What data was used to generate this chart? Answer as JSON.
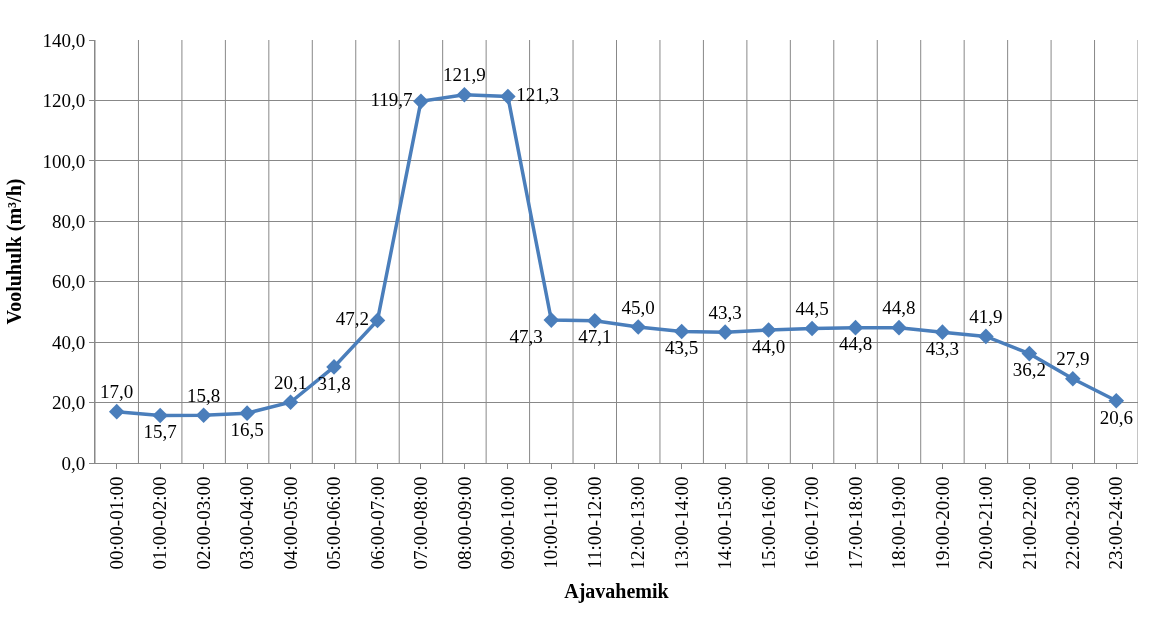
{
  "chart_data": {
    "type": "line",
    "xlabel": "Ajavahemik",
    "ylabel": "Vooluhulk (m³/h)",
    "categories": [
      "00:00-01:00",
      "01:00-02:00",
      "02:00-03:00",
      "03:00-04:00",
      "04:00-05:00",
      "05:00-06:00",
      "06:00-07:00",
      "07:00-08:00",
      "08:00-09:00",
      "09:00-10:00",
      "10:00-11:00",
      "11:00-12:00",
      "12:00-13:00",
      "13:00-14:00",
      "14:00-15:00",
      "15:00-16:00",
      "16:00-17:00",
      "17:00-18:00",
      "18:00-19:00",
      "19:00-20:00",
      "20:00-21:00",
      "21:00-22:00",
      "22:00-23:00",
      "23:00-24:00"
    ],
    "series": [
      {
        "color": "#4a7ebb",
        "values": [
          17.0,
          15.7,
          15.8,
          16.5,
          20.1,
          31.8,
          47.2,
          119.7,
          121.9,
          121.3,
          47.3,
          47.1,
          45.0,
          43.5,
          43.3,
          44.0,
          44.5,
          44.8,
          44.8,
          43.3,
          41.9,
          36.2,
          27.9,
          20.6
        ],
        "value_labels": [
          "17,0",
          "15,7",
          "15,8",
          "16,5",
          "20,1",
          "31,8",
          "47,2",
          "119,7",
          "121,9",
          "121,3",
          "47,3",
          "47,1",
          "45,0",
          "43,5",
          "43,3",
          "44,0",
          "44,5",
          "44,8",
          "44,8",
          "43,3",
          "41,9",
          "36,2",
          "27,9",
          "20,6"
        ]
      }
    ],
    "ylim": [
      0,
      140
    ],
    "yticks": [
      {
        "value": 0,
        "label": "0,0"
      },
      {
        "value": 20,
        "label": "20,0"
      },
      {
        "value": 40,
        "label": "40,0"
      },
      {
        "value": 60,
        "label": "60,0"
      },
      {
        "value": 80,
        "label": "80,0"
      },
      {
        "value": 100,
        "label": "100,0"
      },
      {
        "value": 120,
        "label": "120,0"
      },
      {
        "value": 140,
        "label": "140,0"
      }
    ],
    "grid": true,
    "marker": "diamond",
    "line_style": "solid"
  }
}
